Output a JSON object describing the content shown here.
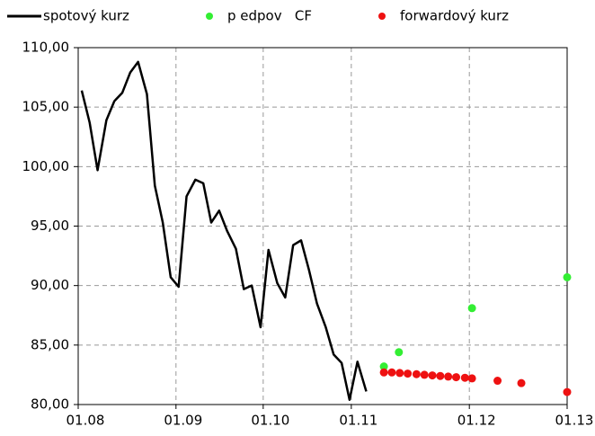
{
  "chart_data": {
    "type": "line",
    "xlim": [
      0,
      5.55
    ],
    "ylim": [
      80,
      110
    ],
    "xticks": [
      {
        "value": 0,
        "label": "01.08"
      },
      {
        "value": 1.11,
        "label": "01.09"
      },
      {
        "value": 2.1,
        "label": "01.10"
      },
      {
        "value": 3.1,
        "label": "01.11"
      },
      {
        "value": 4.44,
        "label": "01.12"
      },
      {
        "value": 5.55,
        "label": "01.13"
      }
    ],
    "yticks": [
      {
        "value": 80,
        "label": "80,00"
      },
      {
        "value": 85,
        "label": "85,00"
      },
      {
        "value": 90,
        "label": "90,00"
      },
      {
        "value": 95,
        "label": "95,00"
      },
      {
        "value": 100,
        "label": "100,00"
      },
      {
        "value": 105,
        "label": "105,00"
      },
      {
        "value": 110,
        "label": "110,00"
      }
    ],
    "grid": true,
    "series": [
      {
        "name": "spotový kurz",
        "type": "line",
        "color": "#000000",
        "x": [
          0.04,
          0.13,
          0.22,
          0.32,
          0.41,
          0.5,
          0.59,
          0.68,
          0.78,
          0.87,
          0.96,
          1.05,
          1.14,
          1.23,
          1.33,
          1.42,
          1.51,
          1.6,
          1.69,
          1.79,
          1.88,
          1.97,
          2.07,
          2.16,
          2.26,
          2.35,
          2.44,
          2.53,
          2.62,
          2.71,
          2.81,
          2.9,
          2.99,
          3.08,
          3.17,
          3.27
        ],
        "values": [
          106.4,
          103.7,
          99.7,
          103.9,
          105.5,
          106.2,
          107.9,
          108.8,
          106.1,
          98.4,
          95.3,
          90.7,
          89.9,
          97.5,
          98.9,
          98.6,
          95.3,
          96.3,
          94.6,
          93.1,
          89.7,
          90.0,
          86.5,
          93.0,
          90.2,
          89.0,
          93.4,
          93.8,
          91.3,
          88.5,
          86.5,
          84.2,
          83.5,
          80.4,
          83.6,
          81.1
        ]
      },
      {
        "name": "p edpov   CF",
        "type": "scatter",
        "color": "#33ee33",
        "x": [
          3.47,
          3.64,
          4.47,
          5.55
        ],
        "values": [
          83.2,
          84.4,
          88.1,
          90.7
        ]
      },
      {
        "name": "forwardový kurz",
        "type": "scatter",
        "color": "#ee1111",
        "x": [
          3.47,
          3.56,
          3.65,
          3.74,
          3.84,
          3.93,
          4.02,
          4.11,
          4.2,
          4.29,
          4.39,
          4.47,
          4.76,
          5.03,
          5.55
        ],
        "values": [
          82.7,
          82.7,
          82.65,
          82.6,
          82.55,
          82.5,
          82.45,
          82.4,
          82.35,
          82.3,
          82.25,
          82.2,
          82.0,
          81.8,
          81.05
        ]
      }
    ]
  }
}
